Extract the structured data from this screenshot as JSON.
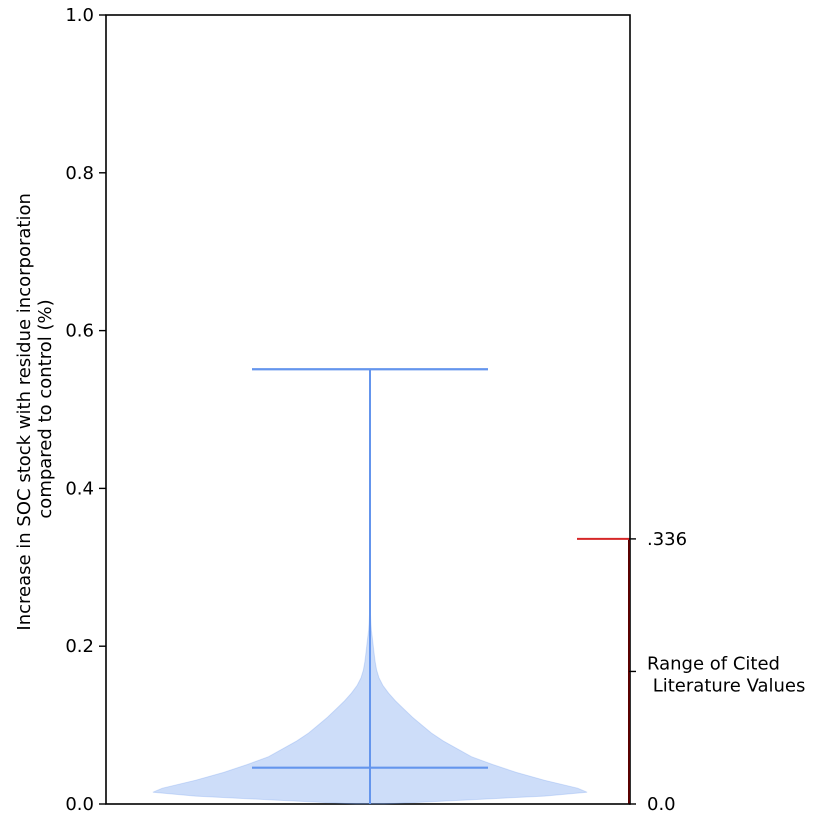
{
  "chart_data": {
    "type": "violin",
    "title": "",
    "xlabel": "",
    "ylabel_line1": "Increase in SOC stock with residue incorporation",
    "ylabel_line2": "compared to control (%)",
    "ylim": [
      0.0,
      1.0
    ],
    "yticks": [
      0.0,
      0.2,
      0.4,
      0.6,
      0.8,
      1.0
    ],
    "ytick_labels": [
      "0.0",
      "0.2",
      "0.4",
      "0.6",
      "0.8",
      "1.0"
    ],
    "violin": {
      "color": "#6495ED",
      "fill_opacity": 0.32,
      "max": 0.551,
      "median": 0.046,
      "min": 0.0,
      "density_profile": [
        [
          0.0,
          0.06
        ],
        [
          0.005,
          0.4
        ],
        [
          0.01,
          0.74
        ],
        [
          0.015,
          0.92
        ],
        [
          0.02,
          0.88
        ],
        [
          0.03,
          0.74
        ],
        [
          0.04,
          0.62
        ],
        [
          0.05,
          0.52
        ],
        [
          0.06,
          0.43
        ],
        [
          0.07,
          0.37
        ],
        [
          0.08,
          0.31
        ],
        [
          0.09,
          0.26
        ],
        [
          0.1,
          0.22
        ],
        [
          0.11,
          0.18
        ],
        [
          0.12,
          0.145
        ],
        [
          0.13,
          0.11
        ],
        [
          0.14,
          0.08
        ],
        [
          0.15,
          0.055
        ],
        [
          0.16,
          0.038
        ],
        [
          0.17,
          0.028
        ],
        [
          0.18,
          0.022
        ],
        [
          0.19,
          0.018
        ],
        [
          0.2,
          0.014
        ],
        [
          0.21,
          0.01
        ],
        [
          0.22,
          0.006
        ],
        [
          0.23,
          0.004
        ],
        [
          0.24,
          0.002
        ],
        [
          0.25,
          0.0
        ]
      ]
    },
    "literature_range": {
      "color_top": "#D62728",
      "color_bar": "#5A0000",
      "min": 0.0,
      "max": 0.336,
      "max_label": ".336",
      "min_label": "0.0",
      "label_line1": "Range of Cited",
      "label_line2": " Literature Values"
    }
  }
}
